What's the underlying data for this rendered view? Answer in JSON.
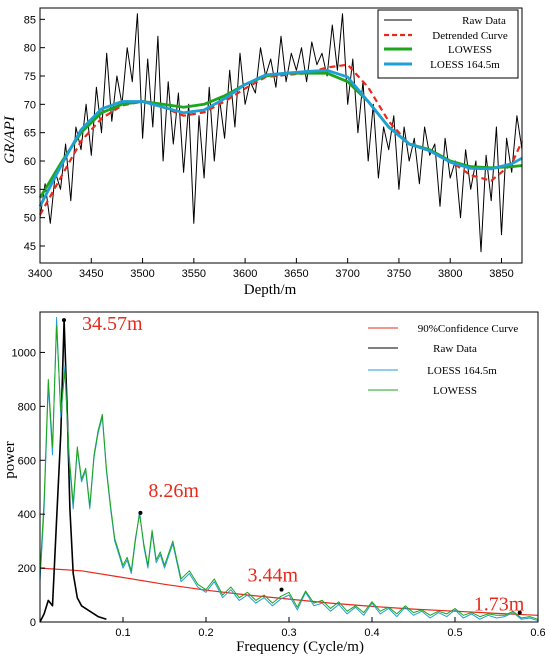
{
  "chart_data": [
    {
      "type": "line",
      "xlabel": "Depth/m",
      "ylabel": "GR/API",
      "xlim": [
        3400,
        3870
      ],
      "ylim": [
        42,
        87
      ],
      "xticks": [
        3400,
        3450,
        3500,
        3550,
        3600,
        3650,
        3700,
        3750,
        3800,
        3850
      ],
      "yticks": [
        45,
        50,
        55,
        60,
        65,
        70,
        75,
        80,
        85
      ],
      "legend_position": "top-right",
      "legend": [
        "Raw Data",
        "Detrended Curve",
        "LOWESS",
        "LOESS 164.5m"
      ],
      "series": [
        {
          "name": "Raw Data",
          "color": "#000000",
          "style": "solid-thin",
          "x": [
            3400,
            3405,
            3410,
            3415,
            3420,
            3425,
            3430,
            3435,
            3440,
            3445,
            3450,
            3455,
            3460,
            3465,
            3470,
            3475,
            3480,
            3485,
            3490,
            3495,
            3500,
            3505,
            3510,
            3515,
            3520,
            3525,
            3530,
            3535,
            3540,
            3545,
            3550,
            3555,
            3560,
            3565,
            3570,
            3575,
            3580,
            3585,
            3590,
            3595,
            3600,
            3605,
            3610,
            3615,
            3620,
            3625,
            3630,
            3635,
            3640,
            3645,
            3650,
            3655,
            3660,
            3665,
            3670,
            3675,
            3680,
            3685,
            3690,
            3695,
            3700,
            3705,
            3710,
            3715,
            3720,
            3725,
            3730,
            3735,
            3740,
            3745,
            3750,
            3755,
            3760,
            3765,
            3770,
            3775,
            3780,
            3785,
            3790,
            3795,
            3800,
            3805,
            3810,
            3815,
            3820,
            3825,
            3830,
            3835,
            3840,
            3845,
            3850,
            3855,
            3860,
            3865,
            3870
          ],
          "values": [
            50,
            56,
            49,
            58,
            55,
            63,
            53,
            66,
            62,
            70,
            61,
            73,
            65,
            79,
            67,
            75,
            70,
            80,
            74,
            86,
            64,
            78,
            66,
            82,
            60,
            74,
            63,
            72,
            58,
            70,
            49,
            68,
            57,
            73,
            60,
            71,
            64,
            76,
            66,
            79,
            70,
            74,
            72,
            80,
            75,
            78,
            73,
            82,
            74,
            79,
            76,
            80,
            74,
            81,
            77,
            79,
            75,
            84,
            76,
            86,
            70,
            78,
            65,
            74,
            60,
            70,
            57,
            66,
            62,
            68,
            55,
            66,
            60,
            64,
            56,
            66,
            61,
            63,
            52,
            64,
            57,
            60,
            50,
            62,
            55,
            60,
            44,
            61,
            53,
            66,
            47,
            64,
            58,
            68,
            62
          ]
        },
        {
          "name": "Detrended Curve",
          "color": "#e8291b",
          "style": "dashed",
          "x": [
            3400,
            3420,
            3440,
            3460,
            3480,
            3500,
            3520,
            3540,
            3560,
            3580,
            3600,
            3620,
            3640,
            3660,
            3680,
            3700,
            3720,
            3740,
            3760,
            3780,
            3800,
            3820,
            3840,
            3860,
            3870
          ],
          "values": [
            50.5,
            57,
            63.5,
            67.5,
            69.8,
            70.5,
            69.5,
            68,
            68.6,
            70.5,
            72.8,
            74.8,
            75.2,
            75.5,
            76.5,
            77,
            73,
            67,
            63,
            62,
            60,
            57.5,
            56.5,
            59.5,
            63.5
          ]
        },
        {
          "name": "LOWESS",
          "color": "#1ea51e",
          "style": "solid-thick",
          "x": [
            3400,
            3420,
            3440,
            3460,
            3480,
            3500,
            3520,
            3540,
            3560,
            3580,
            3600,
            3620,
            3640,
            3660,
            3680,
            3700,
            3720,
            3740,
            3760,
            3780,
            3800,
            3820,
            3840,
            3860,
            3870
          ],
          "values": [
            53.5,
            59.5,
            65,
            68.5,
            70,
            70.5,
            70,
            69.5,
            70,
            71.5,
            73.5,
            75,
            75.5,
            75.5,
            75.5,
            74,
            70.5,
            66,
            63,
            62,
            60,
            59,
            58.8,
            59,
            59.2
          ]
        },
        {
          "name": "LOESS 164.5m",
          "color": "#1f9fd8",
          "style": "solid-thick",
          "x": [
            3400,
            3420,
            3440,
            3460,
            3480,
            3500,
            3520,
            3540,
            3560,
            3580,
            3600,
            3620,
            3640,
            3660,
            3680,
            3700,
            3720,
            3740,
            3760,
            3780,
            3800,
            3820,
            3840,
            3860,
            3870
          ],
          "values": [
            52,
            59,
            65.5,
            69.2,
            70.5,
            70.5,
            69.5,
            68.5,
            69,
            71,
            73.5,
            75.2,
            75.5,
            75.8,
            76,
            74.8,
            70.5,
            66,
            63,
            61.8,
            59.8,
            58.7,
            58.6,
            59.5,
            60.5
          ]
        }
      ]
    },
    {
      "type": "line",
      "xlabel": "Frequency (Cycle/m)",
      "ylabel": "power",
      "xlim": [
        0,
        0.6
      ],
      "ylim": [
        0,
        1150
      ],
      "xticks": [
        0.1,
        0.2,
        0.3,
        0.4,
        0.5,
        0.6
      ],
      "yticks": [
        0,
        200,
        400,
        600,
        800,
        1000
      ],
      "legend_position": "top-right",
      "legend": [
        "90%Confidence Curve",
        "Raw Data",
        "LOESS 164.5m",
        "LOWESS"
      ],
      "annotations": [
        {
          "text": "34.57m",
          "x": 0.0289,
          "y": 1120
        },
        {
          "text": "8.26m",
          "x": 0.121,
          "y": 405
        },
        {
          "text": "3.44m",
          "x": 0.291,
          "y": 120
        },
        {
          "text": "1.73m",
          "x": 0.578,
          "y": 35
        }
      ],
      "series": [
        {
          "name": "90%Confidence Curve",
          "color": "#e8291b",
          "x": [
            0,
            0.05,
            0.1,
            0.15,
            0.2,
            0.25,
            0.3,
            0.35,
            0.4,
            0.45,
            0.5,
            0.55,
            0.6
          ],
          "values": [
            200,
            190,
            165,
            140,
            118,
            100,
            85,
            70,
            58,
            48,
            40,
            32,
            25
          ]
        },
        {
          "name": "Raw Data",
          "color": "#000000",
          "x": [
            0,
            0.005,
            0.01,
            0.015,
            0.02,
            0.025,
            0.029,
            0.033,
            0.036,
            0.04,
            0.045,
            0.05,
            0.06,
            0.07,
            0.08
          ],
          "values": [
            0,
            30,
            80,
            60,
            380,
            700,
            1120,
            760,
            420,
            180,
            90,
            60,
            40,
            20,
            10
          ]
        },
        {
          "name": "LOESS 164.5m",
          "color": "#1f9fd8",
          "x": [
            0,
            0.005,
            0.01,
            0.015,
            0.02,
            0.025,
            0.03,
            0.035,
            0.04,
            0.045,
            0.05,
            0.055,
            0.06,
            0.065,
            0.07,
            0.075,
            0.08,
            0.085,
            0.09,
            0.095,
            0.1,
            0.105,
            0.11,
            0.115,
            0.12,
            0.125,
            0.13,
            0.135,
            0.14,
            0.145,
            0.15,
            0.16,
            0.17,
            0.18,
            0.19,
            0.2,
            0.21,
            0.22,
            0.23,
            0.24,
            0.25,
            0.26,
            0.27,
            0.28,
            0.29,
            0.3,
            0.31,
            0.32,
            0.33,
            0.34,
            0.35,
            0.36,
            0.37,
            0.38,
            0.39,
            0.4,
            0.41,
            0.42,
            0.43,
            0.44,
            0.45,
            0.46,
            0.47,
            0.48,
            0.49,
            0.5,
            0.51,
            0.52,
            0.53,
            0.54,
            0.55,
            0.56,
            0.57,
            0.58,
            0.59,
            0.6
          ],
          "values": [
            150,
            420,
            880,
            620,
            1130,
            760,
            950,
            600,
            420,
            640,
            520,
            560,
            420,
            610,
            700,
            760,
            560,
            420,
            300,
            250,
            200,
            230,
            180,
            300,
            410,
            280,
            200,
            330,
            220,
            250,
            200,
            290,
            150,
            180,
            130,
            110,
            150,
            90,
            120,
            80,
            100,
            70,
            90,
            60,
            85,
            100,
            45,
            110,
            60,
            70,
            40,
            65,
            30,
            55,
            25,
            70,
            30,
            50,
            20,
            55,
            25,
            40,
            15,
            35,
            20,
            45,
            15,
            30,
            10,
            25,
            15,
            20,
            35,
            10,
            15,
            5
          ]
        },
        {
          "name": "LOWESS",
          "color": "#1ea51e",
          "x": [
            0,
            0.005,
            0.01,
            0.015,
            0.02,
            0.025,
            0.03,
            0.035,
            0.04,
            0.045,
            0.05,
            0.055,
            0.06,
            0.065,
            0.07,
            0.075,
            0.08,
            0.085,
            0.09,
            0.095,
            0.1,
            0.105,
            0.11,
            0.115,
            0.12,
            0.125,
            0.13,
            0.135,
            0.14,
            0.145,
            0.15,
            0.16,
            0.17,
            0.18,
            0.19,
            0.2,
            0.21,
            0.22,
            0.23,
            0.24,
            0.25,
            0.26,
            0.27,
            0.28,
            0.29,
            0.3,
            0.31,
            0.32,
            0.33,
            0.34,
            0.35,
            0.36,
            0.37,
            0.38,
            0.39,
            0.4,
            0.41,
            0.42,
            0.43,
            0.44,
            0.45,
            0.46,
            0.47,
            0.48,
            0.49,
            0.5,
            0.51,
            0.52,
            0.53,
            0.54,
            0.55,
            0.56,
            0.57,
            0.58,
            0.59,
            0.6
          ],
          "values": [
            180,
            450,
            900,
            650,
            1100,
            780,
            930,
            620,
            440,
            650,
            530,
            570,
            430,
            620,
            710,
            770,
            570,
            430,
            310,
            260,
            210,
            240,
            190,
            310,
            400,
            290,
            210,
            340,
            230,
            260,
            210,
            300,
            160,
            190,
            140,
            120,
            160,
            100,
            130,
            90,
            110,
            80,
            100,
            70,
            95,
            110,
            55,
            115,
            70,
            80,
            50,
            75,
            40,
            60,
            35,
            75,
            40,
            55,
            30,
            60,
            35,
            45,
            25,
            40,
            30,
            50,
            25,
            35,
            20,
            30,
            25,
            25,
            40,
            15,
            20,
            10
          ]
        }
      ]
    }
  ]
}
